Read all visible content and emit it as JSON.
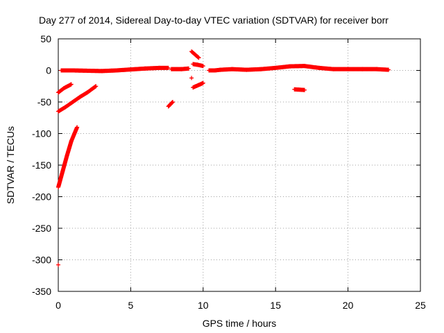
{
  "chart_data": {
    "type": "scatter",
    "title": "Day 277 of 2014, Sidereal Day-to-day VTEC variation (SDTVAR) for receiver borr",
    "xlabel": "GPS time / hours",
    "ylabel": "SDTVAR / TECUs",
    "xlim": [
      0,
      25
    ],
    "ylim": [
      -350,
      50
    ],
    "xticks": [
      0,
      5,
      10,
      15,
      20,
      25
    ],
    "yticks": [
      50,
      0,
      -50,
      -100,
      -150,
      -200,
      -250,
      -300,
      -350
    ],
    "grid": true,
    "marker": "+",
    "color": "#ff0000",
    "series": [
      {
        "segments": [
          [
            [
              0.2,
              0
            ],
            [
              1.0,
              0
            ],
            [
              2.0,
              -0.5
            ],
            [
              3.0,
              -1
            ],
            [
              4.0,
              0
            ],
            [
              5.0,
              1.5
            ],
            [
              6.0,
              3
            ],
            [
              7.0,
              4
            ],
            [
              7.6,
              4
            ]
          ],
          [
            [
              7.8,
              2
            ],
            [
              8.5,
              2
            ],
            [
              9.0,
              3
            ]
          ],
          [
            [
              9.3,
              10
            ],
            [
              9.6,
              9
            ],
            [
              10.0,
              7
            ]
          ],
          [
            [
              10.4,
              0
            ],
            [
              10.8,
              0
            ],
            [
              11.2,
              1
            ],
            [
              12.0,
              2
            ],
            [
              13.0,
              1
            ],
            [
              14.0,
              2
            ],
            [
              15.0,
              4
            ],
            [
              16.0,
              6.5
            ],
            [
              17.0,
              7
            ],
            [
              18.0,
              4
            ],
            [
              19.0,
              2
            ],
            [
              20.0,
              2
            ],
            [
              21.0,
              2
            ],
            [
              22.0,
              2
            ],
            [
              22.8,
              1
            ]
          ],
          [
            [
              0.0,
              -35
            ],
            [
              0.4,
              -28
            ],
            [
              0.9,
              -22
            ]
          ],
          [
            [
              0.0,
              -65
            ],
            [
              0.5,
              -58
            ],
            [
              1.0,
              -50
            ],
            [
              1.5,
              -42
            ],
            [
              2.0,
              -35
            ],
            [
              2.6,
              -25
            ]
          ],
          [
            [
              0.0,
              -185
            ],
            [
              0.3,
              -160
            ],
            [
              0.6,
              -135
            ],
            [
              0.9,
              -112
            ],
            [
              1.3,
              -90
            ]
          ],
          [
            [
              7.6,
              -57
            ],
            [
              7.9,
              -50
            ]
          ],
          [
            [
              9.2,
              30
            ],
            [
              9.7,
              20
            ]
          ],
          [
            [
              9.3,
              -27
            ],
            [
              10.0,
              -20
            ]
          ],
          [
            [
              16.3,
              -30
            ],
            [
              17.0,
              -31
            ]
          ]
        ],
        "points": [
          [
            0.0,
            -308
          ],
          [
            9.2,
            -12
          ]
        ]
      }
    ]
  }
}
